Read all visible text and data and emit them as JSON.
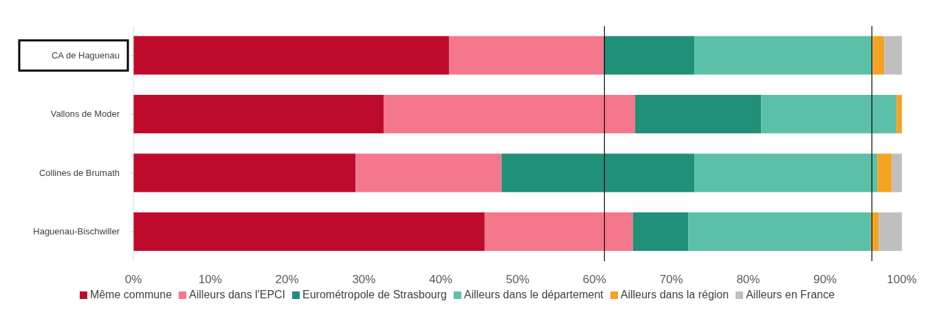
{
  "chart_data": {
    "type": "bar",
    "orientation": "horizontal",
    "stacked": true,
    "categories": [
      "CA de Haguenau",
      "Vallons de Moder",
      "Collines de Brumath",
      "Haguenau-Bischwiller"
    ],
    "series": [
      {
        "name": "Même commune",
        "color": "#be0b2c",
        "values": [
          41.1,
          32.6,
          28.9,
          45.7
        ]
      },
      {
        "name": "Ailleurs dans l'EPCI",
        "color": "#f4778b",
        "values": [
          20.1,
          32.7,
          19.0,
          19.3
        ]
      },
      {
        "name": "Eurométropole de Strasbourg",
        "color": "#219078",
        "values": [
          11.8,
          16.4,
          25.1,
          7.2
        ]
      },
      {
        "name": "Ailleurs dans le département",
        "color": "#5cc0a8",
        "values": [
          23.2,
          17.6,
          23.8,
          23.8
        ]
      },
      {
        "name": "Ailleurs dans la région",
        "color": "#f4a323",
        "values": [
          1.5,
          0.7,
          1.9,
          1.0
        ]
      },
      {
        "name": "Ailleurs en France",
        "color": "#bfbfbf",
        "values": [
          2.3,
          0,
          1.3,
          3.0
        ]
      }
    ],
    "xlim": [
      0,
      100
    ],
    "xticks": [
      {
        "value": 0,
        "label": "0%"
      },
      {
        "value": 10,
        "label": "10%"
      },
      {
        "value": 20,
        "label": "20%"
      },
      {
        "value": 30,
        "label": "30%"
      },
      {
        "value": 40,
        "label": "40%"
      },
      {
        "value": 50,
        "label": "50%"
      },
      {
        "value": 60,
        "label": "60%"
      },
      {
        "value": 70,
        "label": "70%"
      },
      {
        "value": 80,
        "label": "80%"
      },
      {
        "value": 90,
        "label": "90%"
      },
      {
        "value": 100,
        "label": "100%"
      }
    ],
    "ref_lines": [
      {
        "axis": "x",
        "value": 61.3,
        "color": "#000000"
      },
      {
        "axis": "x",
        "value": 96.1,
        "color": "#000000"
      }
    ],
    "grid": false,
    "legend": "bottom"
  }
}
